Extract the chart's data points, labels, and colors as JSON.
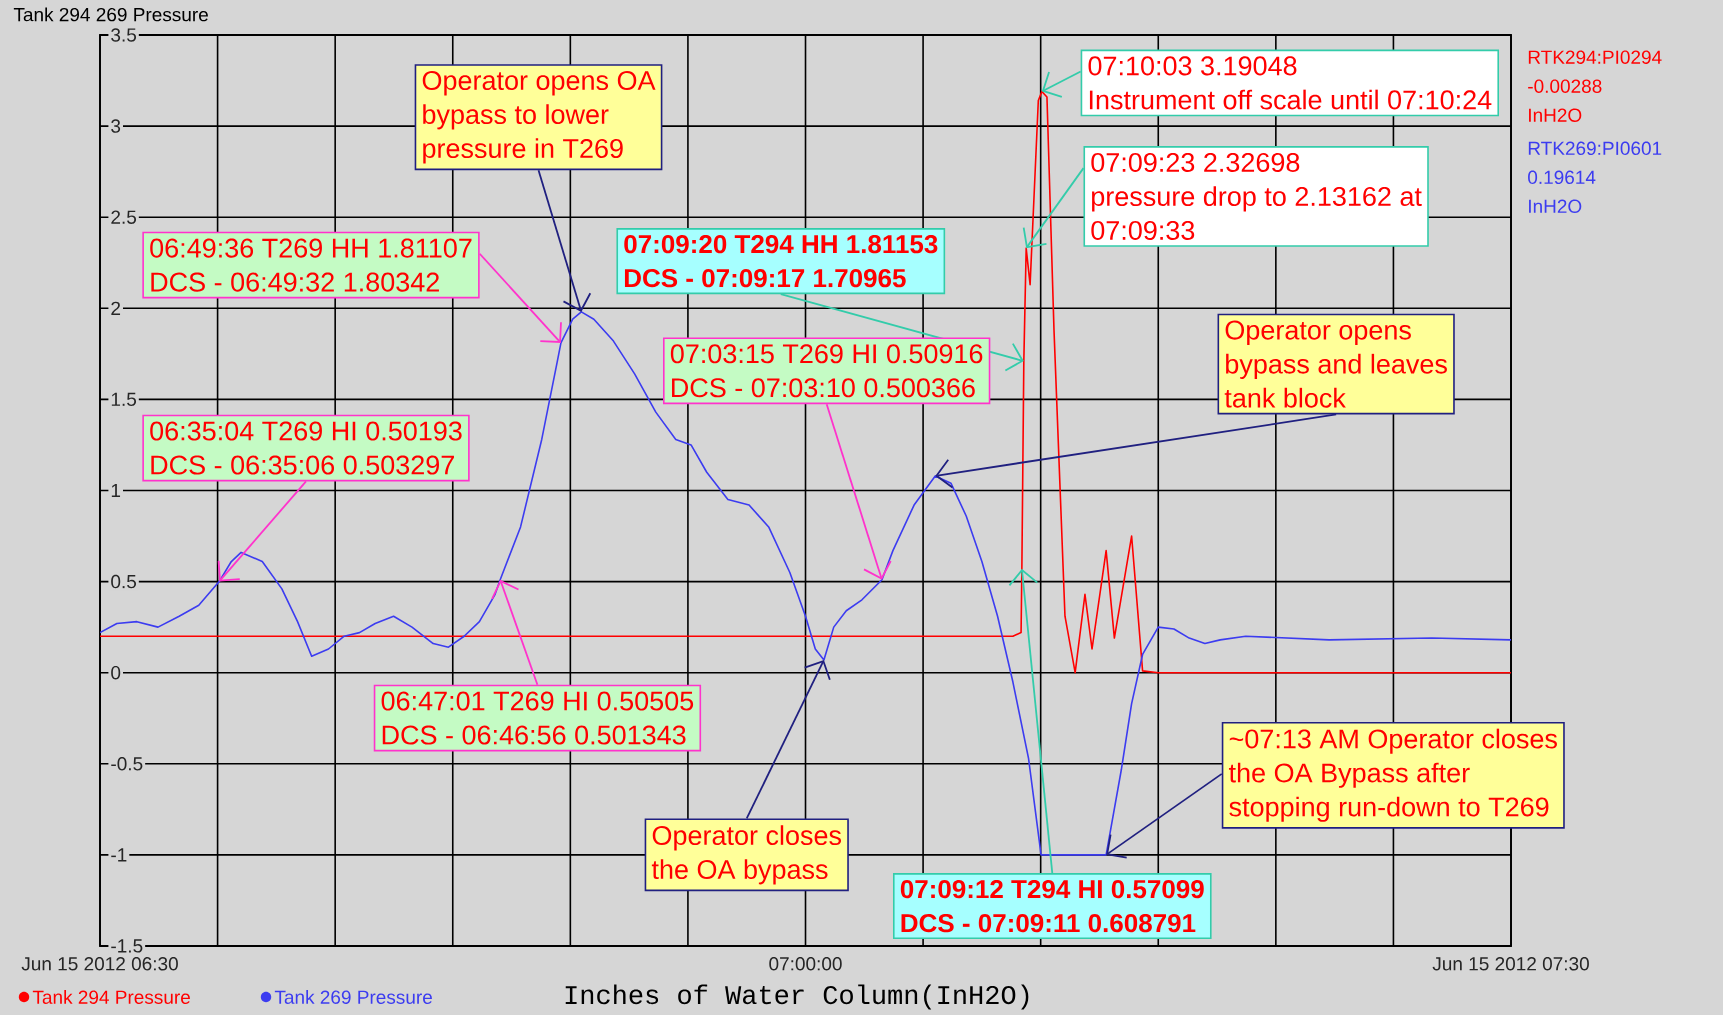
{
  "chart_data": {
    "type": "line",
    "title": "Tank 294 269 Pressure",
    "xlabel": "Inches of Water Column(InH2O)",
    "xlim": [
      "2012-06-15T06:30:00",
      "2012-06-15T07:30:00"
    ],
    "ylim": [
      -1.5,
      3.5
    ],
    "xticks": [
      {
        "value": "2012-06-15T06:30:00",
        "label": "Jun 15 2012 06:30"
      },
      {
        "value": "2012-06-15T06:35:00",
        "label": null
      },
      {
        "value": "2012-06-15T06:40:00",
        "label": null
      },
      {
        "value": "2012-06-15T06:45:00",
        "label": null
      },
      {
        "value": "2012-06-15T06:50:00",
        "label": null
      },
      {
        "value": "2012-06-15T06:55:00",
        "label": null
      },
      {
        "value": "2012-06-15T07:00:00",
        "label": "07:00:00"
      },
      {
        "value": "2012-06-15T07:05:00",
        "label": null
      },
      {
        "value": "2012-06-15T07:10:00",
        "label": null
      },
      {
        "value": "2012-06-15T07:15:00",
        "label": null
      },
      {
        "value": "2012-06-15T07:20:00",
        "label": null
      },
      {
        "value": "2012-06-15T07:25:00",
        "label": null
      },
      {
        "value": "2012-06-15T07:30:00",
        "label": "Jun 15 2012 07:30"
      }
    ],
    "yticks": [
      3.5,
      3,
      2.5,
      2,
      1.5,
      1,
      0.5,
      0,
      -0.5,
      -1,
      -1.5
    ],
    "grid": true,
    "legend": "bottom left",
    "series": [
      {
        "name": "Tank 294 Pressure",
        "color": "#ff0000",
        "x": [
          "2012-06-15T06:30:00",
          "2012-06-15T06:45:00",
          "2012-06-15T06:59:57",
          "2012-06-15T07:08:49",
          "2012-06-15T07:09:10",
          "2012-06-15T07:09:12",
          "2012-06-15T07:09:17",
          "2012-06-15T07:09:23",
          "2012-06-15T07:09:33",
          "2012-06-15T07:09:54",
          "2012-06-15T07:10:03",
          "2012-06-15T07:10:16",
          "2012-06-15T07:10:34",
          "2012-06-15T07:11:02",
          "2012-06-15T07:11:28",
          "2012-06-15T07:11:53",
          "2012-06-15T07:12:11",
          "2012-06-15T07:12:47",
          "2012-06-15T07:13:08",
          "2012-06-15T07:13:41",
          "2012-06-15T07:13:52",
          "2012-06-15T07:14:20",
          "2012-06-15T07:15:00",
          "2012-06-15T07:30:00"
        ],
        "values": [
          0.2,
          0.2,
          0.2,
          0.2,
          0.22,
          0.57,
          1.71,
          2.33,
          2.13,
          3.14,
          3.19,
          3.16,
          1.88,
          0.31,
          0.0,
          0.43,
          0.13,
          0.67,
          0.19,
          0.61,
          0.75,
          0.01,
          0.0,
          0.0
        ]
      },
      {
        "name": "Tank 269 Pressure",
        "color": "#3c3cf0",
        "x": [
          "2012-06-15T06:30:00",
          "2012-06-15T06:30:43",
          "2012-06-15T06:31:34",
          "2012-06-15T06:32:28",
          "2012-06-15T06:33:22",
          "2012-06-15T06:34:12",
          "2012-06-15T06:35:04",
          "2012-06-15T06:35:35",
          "2012-06-15T06:36:00",
          "2012-06-15T06:36:54",
          "2012-06-15T06:37:44",
          "2012-06-15T06:38:24",
          "2012-06-15T06:39:00",
          "2012-06-15T06:39:43",
          "2012-06-15T06:40:23",
          "2012-06-15T06:41:02",
          "2012-06-15T06:41:42",
          "2012-06-15T06:42:29",
          "2012-06-15T06:43:16",
          "2012-06-15T06:44:10",
          "2012-06-15T06:44:49",
          "2012-06-15T06:45:29",
          "2012-06-15T06:46:08",
          "2012-06-15T06:46:48",
          "2012-06-15T06:47:01",
          "2012-06-15T06:47:53",
          "2012-06-15T06:48:47",
          "2012-06-15T06:49:26",
          "2012-06-15T06:49:36",
          "2012-06-15T06:50:06",
          "2012-06-15T06:50:28",
          "2012-06-15T06:51:00",
          "2012-06-15T06:51:50",
          "2012-06-15T06:52:44",
          "2012-06-15T06:53:38",
          "2012-06-15T06:54:29",
          "2012-06-15T06:55:08",
          "2012-06-15T06:55:48",
          "2012-06-15T06:56:42",
          "2012-06-15T06:57:36",
          "2012-06-15T06:58:26",
          "2012-06-15T06:59:20",
          "2012-06-15T07:00:00",
          "2012-06-15T07:00:25",
          "2012-06-15T07:00:47",
          "2012-06-15T07:01:12",
          "2012-06-15T07:01:44",
          "2012-06-15T07:02:24",
          "2012-06-15T07:03:15",
          "2012-06-15T07:03:43",
          "2012-06-15T07:04:37",
          "2012-06-15T07:05:31",
          "2012-06-15T07:06:11",
          "2012-06-15T07:06:50",
          "2012-06-15T07:07:30",
          "2012-06-15T07:08:10",
          "2012-06-15T07:08:49",
          "2012-06-15T07:09:29",
          "2012-06-15T07:10:01",
          "2012-06-15T07:12:47",
          "2012-06-15T07:13:26",
          "2012-06-15T07:13:52",
          "2012-06-15T07:14:20",
          "2012-06-15T07:15:00",
          "2012-06-15T07:15:40",
          "2012-06-15T07:16:19",
          "2012-06-15T07:16:59",
          "2012-06-15T07:17:38",
          "2012-06-15T07:18:43",
          "2012-06-15T07:22:16",
          "2012-06-15T07:26:38",
          "2012-06-15T07:30:00"
        ],
        "values": [
          0.22,
          0.27,
          0.28,
          0.25,
          0.31,
          0.37,
          0.5,
          0.61,
          0.66,
          0.61,
          0.46,
          0.28,
          0.09,
          0.13,
          0.2,
          0.22,
          0.27,
          0.31,
          0.25,
          0.16,
          0.14,
          0.2,
          0.28,
          0.43,
          0.51,
          0.8,
          1.28,
          1.7,
          1.81,
          1.94,
          1.98,
          1.94,
          1.82,
          1.64,
          1.43,
          1.28,
          1.25,
          1.1,
          0.95,
          0.92,
          0.8,
          0.55,
          0.31,
          0.13,
          0.07,
          0.25,
          0.34,
          0.4,
          0.51,
          0.67,
          0.92,
          1.08,
          1.04,
          0.86,
          0.61,
          0.31,
          -0.05,
          -0.47,
          -1.0,
          -1.0,
          -0.53,
          -0.17,
          0.1,
          0.25,
          0.24,
          0.19,
          0.16,
          0.18,
          0.2,
          0.18,
          0.19,
          0.18
        ]
      }
    ],
    "annotations": [
      "Operator opens OA",
      "bypass to lower",
      {
        "text": "pressure in T269",
        "x": "2012-06-15T06:50:28",
        "y": 1.98
      },
      {
        "text": "06:49:36 T269 HH 1.81107",
        "x": "2012-06-15T06:49:36",
        "y": 1.81
      },
      "DCS - 06:49:32 1.80342",
      "06:35:04 T269 HI 0.50193",
      {
        "text": "DCS - 06:35:06 0.503297",
        "x": "2012-06-15T06:35:04",
        "y": 0.5
      },
      "07:09:20 T294 HH 1.81153",
      {
        "text": "DCS - 07:09:17 1.70965",
        "x": "2012-06-15T07:09:17",
        "y": 1.71
      },
      "07:03:15 T269 HI 0.50916",
      {
        "text": "DCS - 07:03:10 0.500366",
        "x": "2012-06-15T07:03:15",
        "y": 0.51
      },
      "07:10:03 3.19048",
      {
        "text": "Instrument off scale until 07:10:24",
        "x": "2012-06-15T07:10:03",
        "y": 3.19
      },
      "07:09:23 2.32698",
      {
        "text": "pressure drop to 2.13162 at",
        "x": "2012-06-15T07:09:23",
        "y": 2.33
      },
      "07:09:33",
      "Operator opens",
      "bypass and leaves",
      {
        "text": "tank block",
        "x": "2012-06-15T07:05:31",
        "y": 1.08
      },
      {
        "text": "06:47:01 T269 HI 0.50505",
        "x": "2012-06-15T06:47:01",
        "y": 0.51
      },
      "DCS - 06:46:56 0.501343",
      {
        "text": "Operator closes",
        "x": "2012-06-15T07:00:47",
        "y": 0.07
      },
      "the OA bypass",
      {
        "text": "~07:13 AM Operator closes",
        "x": "2012-06-15T07:12:47",
        "y": -1.0
      },
      "the OA Bypass after",
      "stopping run-down to T269",
      {
        "text": "07:09:12 T294 HI 0.57099",
        "x": "2012-06-15T07:09:12",
        "y": 0.57
      },
      "DCS - 07:09:11 0.608791",
      "RTK294:PI0294",
      "-0.00288",
      "InH2O",
      "RTK269:PI0601",
      "0.19614",
      "InH2O"
    ]
  }
}
